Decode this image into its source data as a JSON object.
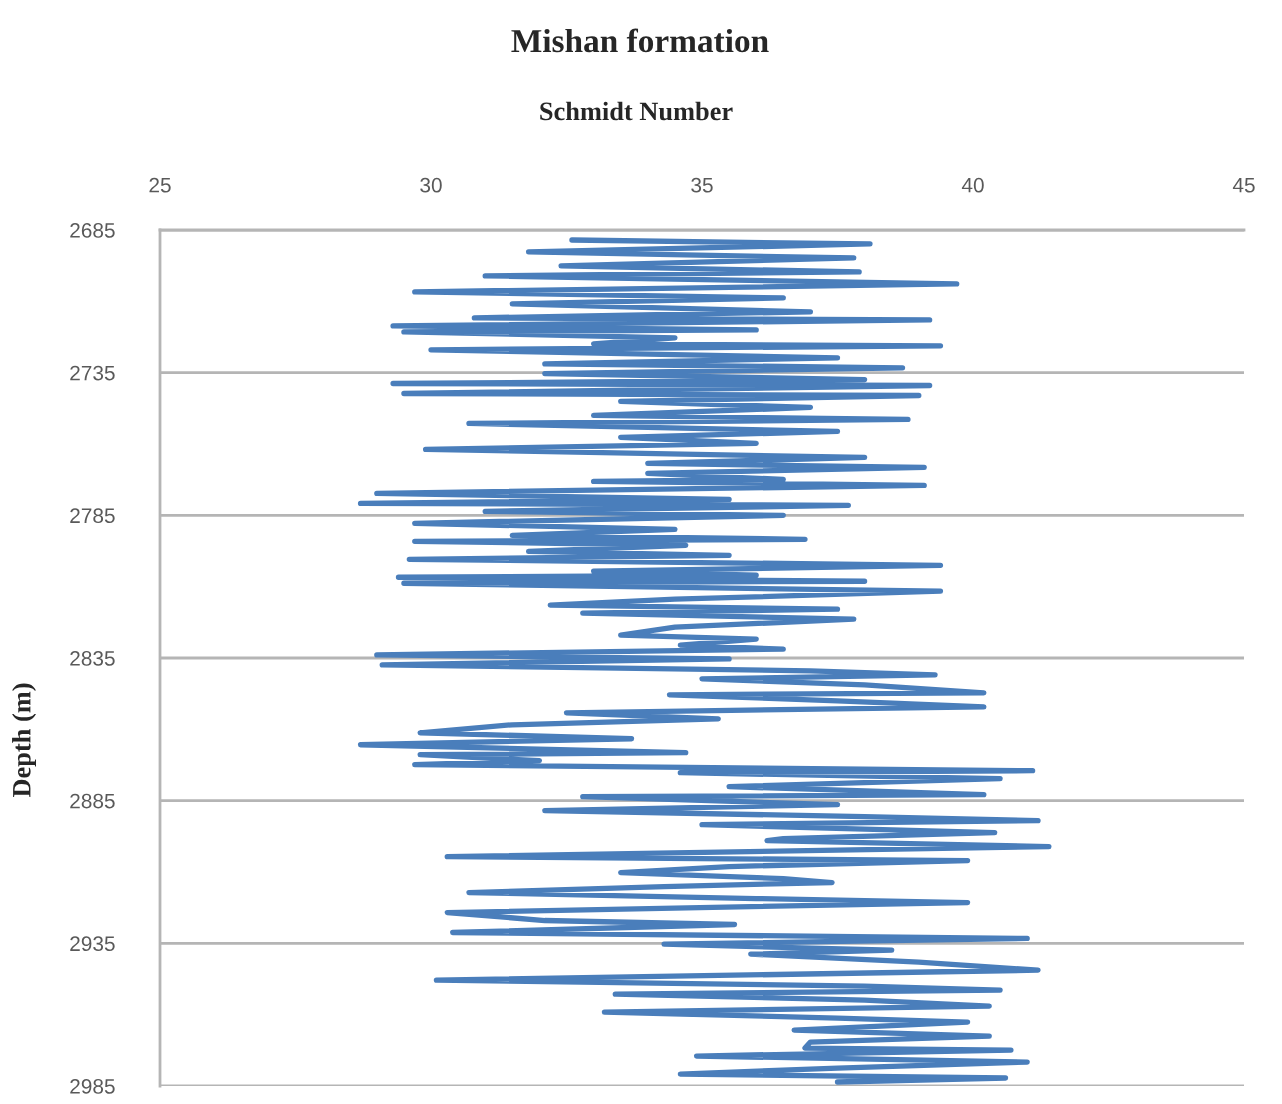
{
  "chart_data": {
    "type": "line",
    "title": "Mishan formation",
    "xlabel": "Schmidt Number",
    "ylabel": "Depth (m)",
    "xlim": [
      25,
      45
    ],
    "xticks": [
      25,
      30,
      35,
      40,
      45
    ],
    "ylim": [
      2985,
      2685
    ],
    "yticks": [
      2685,
      2735,
      2785,
      2835,
      2885,
      2935,
      2985
    ],
    "grid": "y",
    "line_style": "solid",
    "series": [
      {
        "color": "#4a7ebb",
        "x": [
          32.6,
          38.1,
          31.8,
          37.8,
          32.4,
          37.9,
          31.0,
          39.7,
          29.7,
          36.5,
          31.5,
          37.0,
          30.8,
          39.2,
          29.3,
          36.0,
          29.5,
          34.5,
          33.0,
          39.4,
          30.0,
          37.5,
          32.1,
          38.7,
          32.1,
          38.0,
          29.3,
          39.2,
          29.5,
          39.0,
          33.5,
          37.0,
          33.0,
          38.8,
          30.7,
          37.5,
          33.5,
          36.0,
          29.9,
          38.0,
          34.0,
          39.1,
          34.0,
          36.5,
          33.0,
          39.1,
          29.0,
          35.5,
          28.7,
          37.7,
          31.0,
          36.5,
          29.7,
          34.5,
          31.5,
          36.9,
          29.7,
          34.7,
          31.8,
          35.5,
          29.6,
          39.4,
          33.0,
          36.0,
          29.4,
          38.0,
          29.5,
          39.4,
          34.5,
          32.2,
          37.5,
          32.8,
          37.8,
          34.5,
          33.5,
          36.0,
          34.6,
          36.5,
          29.0,
          35.5,
          29.1,
          37.0,
          39.3,
          35.0,
          38.0,
          40.2,
          34.4,
          37.5,
          40.2,
          32.5,
          35.3,
          31.5,
          29.8,
          33.7,
          28.7,
          34.7,
          29.8,
          32.0,
          29.7,
          41.1,
          34.6,
          40.5,
          35.5,
          40.2,
          32.8,
          37.5,
          32.1,
          38.0,
          41.2,
          35.0,
          40.4,
          36.5,
          36.2,
          41.4,
          30.3,
          39.9,
          35.5,
          33.5,
          36.5,
          37.4,
          34.3,
          30.7,
          36.0,
          39.9,
          30.3,
          32.1,
          35.6,
          30.4,
          41.0,
          34.3,
          38.5,
          35.9,
          39.0,
          41.2,
          30.1,
          38.0,
          40.5,
          33.4,
          38.0,
          40.3,
          33.2,
          37.5,
          39.9,
          36.7,
          40.3,
          37.0,
          36.9,
          40.7,
          34.9,
          41.0,
          37.5,
          34.6,
          40.6,
          37.5
        ],
        "values": [
          2688.5,
          2689.9,
          2692.7,
          2694.8,
          2697.6,
          2699.7,
          2701.1,
          2703.9,
          2706.7,
          2708.8,
          2710.9,
          2713.7,
          2715.8,
          2716.5,
          2718.6,
          2720.0,
          2720.7,
          2722.8,
          2724.9,
          2725.6,
          2727.0,
          2729.8,
          2731.9,
          2733.3,
          2735.3,
          2737.4,
          2738.8,
          2739.5,
          2742.3,
          2743.0,
          2745.1,
          2747.2,
          2750.0,
          2751.4,
          2752.8,
          2755.6,
          2757.7,
          2759.8,
          2761.9,
          2764.7,
          2766.8,
          2768.2,
          2770.3,
          2772.4,
          2773.1,
          2774.5,
          2777.3,
          2779.4,
          2780.8,
          2781.5,
          2783.6,
          2785.0,
          2787.8,
          2789.9,
          2792.0,
          2793.4,
          2794.1,
          2795.5,
          2797.6,
          2799.0,
          2800.4,
          2802.5,
          2804.6,
          2806.0,
          2806.7,
          2808.1,
          2808.8,
          2811.6,
          2814.4,
          2816.5,
          2817.9,
          2819.3,
          2821.4,
          2824.2,
          2827.0,
          2828.4,
          2830.5,
          2831.9,
          2833.9,
          2835.3,
          2837.4,
          2839.5,
          2840.9,
          2842.3,
          2844.4,
          2847.2,
          2847.9,
          2850.0,
          2852.1,
          2854.2,
          2856.3,
          2858.4,
          2861.2,
          2863.3,
          2865.4,
          2868.2,
          2868.9,
          2871.0,
          2872.4,
          2874.5,
          2875.2,
          2877.3,
          2880.1,
          2882.9,
          2883.6,
          2886.4,
          2888.5,
          2890.6,
          2892.0,
          2893.4,
          2896.2,
          2898.3,
          2899.0,
          2901.1,
          2904.6,
          2906.0,
          2908.1,
          2910.2,
          2912.3,
          2913.7,
          2915.1,
          2917.2,
          2919.3,
          2920.7,
          2924.2,
          2927.0,
          2928.4,
          2931.2,
          2933.3,
          2935.3,
          2937.4,
          2938.8,
          2941.6,
          2944.4,
          2947.9,
          2950.0,
          2951.4,
          2952.8,
          2954.9,
          2957.0,
          2959.1,
          2961.2,
          2962.6,
          2965.4,
          2967.5,
          2969.6,
          2971.7,
          2972.4,
          2974.5,
          2976.6,
          2978.7,
          2980.8,
          2982.2,
          2983.6
        ]
      }
    ]
  }
}
